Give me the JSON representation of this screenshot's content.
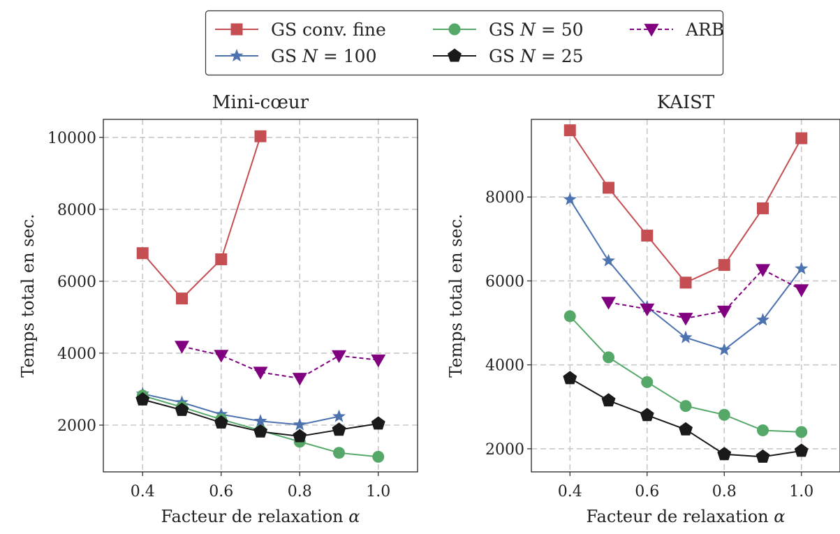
{
  "legend": {
    "placement": "top-center",
    "entries": [
      {
        "key": "gs_fine",
        "label": "GS conv. fine",
        "color": "#c44e52",
        "marker": "square",
        "dash": "solid"
      },
      {
        "key": "gs_n50",
        "label": "GS N = 50",
        "color": "#55a868",
        "marker": "circle",
        "dash": "solid"
      },
      {
        "key": "arb",
        "label": "ARB",
        "color": "#800080",
        "marker": "triangle-down",
        "dash": "dashed"
      },
      {
        "key": "gs_n100",
        "label": "GS N = 100",
        "color": "#4c72b0",
        "marker": "star",
        "dash": "solid"
      },
      {
        "key": "gs_n25",
        "label": "GS N = 25",
        "color": "#1a1a1a",
        "marker": "pentagon",
        "dash": "solid"
      }
    ]
  },
  "chart_data": [
    {
      "type": "line",
      "title": "Mini-cœur",
      "xlabel": "Facteur de relaxation α",
      "ylabel": "Temps total en sec.",
      "xlim": [
        0.3,
        1.1
      ],
      "ylim": [
        700,
        10500
      ],
      "xticks": [
        0.4,
        0.6,
        0.8,
        1.0
      ],
      "xtick_labels": [
        "0.4",
        "0.6",
        "0.8",
        "1.0"
      ],
      "yticks": [
        2000,
        4000,
        6000,
        8000,
        10000
      ],
      "grid": true,
      "series": [
        {
          "key": "gs_fine",
          "x": [
            0.4,
            0.5,
            0.6,
            0.7
          ],
          "y": [
            6780,
            5520,
            6610,
            10030
          ]
        },
        {
          "key": "gs_n100",
          "x": [
            0.4,
            0.5,
            0.6,
            0.7,
            0.8,
            0.9
          ],
          "y": [
            2870,
            2630,
            2300,
            2110,
            2010,
            2240
          ]
        },
        {
          "key": "gs_n50",
          "x": [
            0.4,
            0.5,
            0.6,
            0.7,
            0.8,
            0.9,
            1.0
          ],
          "y": [
            2820,
            2500,
            2160,
            1850,
            1540,
            1230,
            1120
          ]
        },
        {
          "key": "gs_n25",
          "x": [
            0.4,
            0.5,
            0.6,
            0.7,
            0.8,
            0.9,
            1.0
          ],
          "y": [
            2710,
            2420,
            2070,
            1820,
            1690,
            1870,
            2040
          ]
        },
        {
          "key": "arb",
          "x": [
            0.5,
            0.6,
            0.7,
            0.8,
            0.9,
            1.0
          ],
          "y": [
            4190,
            3940,
            3470,
            3300,
            3930,
            3810
          ]
        }
      ]
    },
    {
      "type": "line",
      "title": "KAIST",
      "xlabel": "Facteur de relaxation α",
      "ylabel": "Temps total en sec.",
      "xlim": [
        0.3,
        1.1
      ],
      "ylim": [
        1450,
        9850
      ],
      "xticks": [
        0.4,
        0.6,
        0.8,
        1.0
      ],
      "xtick_labels": [
        "0.4",
        "0.6",
        "0.8",
        "1.0"
      ],
      "yticks": [
        2000,
        4000,
        6000,
        8000
      ],
      "grid": true,
      "series": [
        {
          "key": "gs_fine",
          "x": [
            0.4,
            0.5,
            0.6,
            0.7,
            0.8,
            0.9,
            1.0
          ],
          "y": [
            9590,
            8220,
            7080,
            5960,
            6380,
            7730,
            9400
          ]
        },
        {
          "key": "gs_n100",
          "x": [
            0.4,
            0.5,
            0.6,
            0.7,
            0.8,
            0.9,
            1.0
          ],
          "y": [
            7940,
            6480,
            5380,
            4650,
            4360,
            5070,
            6290
          ]
        },
        {
          "key": "arb",
          "x": [
            0.5,
            0.6,
            0.7,
            0.8,
            0.9,
            1.0
          ],
          "y": [
            5490,
            5330,
            5110,
            5280,
            6270,
            5790
          ]
        },
        {
          "key": "gs_n50",
          "x": [
            0.4,
            0.5,
            0.6,
            0.7,
            0.8,
            0.9,
            1.0
          ],
          "y": [
            5160,
            4180,
            3590,
            3020,
            2810,
            2440,
            2400
          ]
        },
        {
          "key": "gs_n25",
          "x": [
            0.4,
            0.5,
            0.6,
            0.7,
            0.8,
            0.9,
            1.0
          ],
          "y": [
            3680,
            3150,
            2800,
            2460,
            1870,
            1810,
            1950
          ]
        }
      ]
    }
  ]
}
